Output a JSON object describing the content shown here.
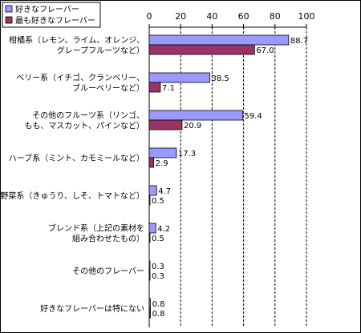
{
  "chart_data": {
    "type": "bar",
    "orientation": "horizontal",
    "title": "",
    "xlabel": "",
    "ylabel": "",
    "xlim": [
      0,
      100
    ],
    "xticks": [
      0,
      20,
      40,
      60,
      80,
      100
    ],
    "grid": "vertical dashed",
    "legend_position": "top-left",
    "categories": [
      [
        "柑橘系（レモン、ライム、オレンジ、",
        "グレープフルーツなど）"
      ],
      [
        "ベリー系（イチゴ、クランベリー、",
        "ブルーベリーなど）"
      ],
      [
        "その他のフルーツ系（リンゴ、",
        "もも、マスカット、パインなど）"
      ],
      [
        "ハーブ系（ミント、カモミールなど）"
      ],
      [
        "野菜系（きゅうり、しそ、トマトなど）"
      ],
      [
        "ブレンド系（上記の素材を",
        "組み合わせたもの）"
      ],
      [
        "その他のフレーバー"
      ],
      [
        "好きなフレーバーは特にない"
      ]
    ],
    "series": [
      {
        "name": "好きなフレーバー",
        "color": "#9999ff",
        "values": [
          88.7,
          38.5,
          59.4,
          17.3,
          4.7,
          4.2,
          0.3,
          0.8
        ]
      },
      {
        "name": "最も好きなフレーバー",
        "color": "#993366",
        "values": [
          67.0,
          7.1,
          20.9,
          2.9,
          0.5,
          0.5,
          0.3,
          0.8
        ]
      }
    ],
    "value_labels": [
      [
        "88.7",
        "38.5",
        "59.4",
        "17.3",
        "4.7",
        "4.2",
        "0.3",
        "0.8"
      ],
      [
        "67.0",
        "7.1",
        "20.9",
        "2.9",
        "0.5",
        "0.5",
        "0.3",
        "0.8"
      ]
    ]
  }
}
